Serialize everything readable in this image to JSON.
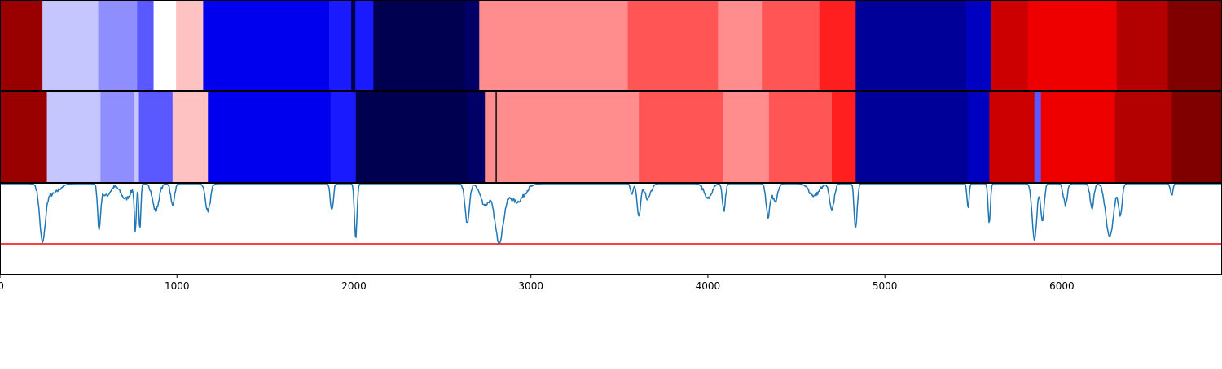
{
  "chart_data": [
    {
      "type": "heatmap",
      "panel": "segmentation_row_1",
      "xlim": [
        0,
        6905
      ],
      "colormap": "seismic",
      "segments": [
        {
          "start": 0,
          "end": 240,
          "color": "#990000"
        },
        {
          "start": 240,
          "end": 555,
          "color": "#c6c6ff"
        },
        {
          "start": 555,
          "end": 775,
          "color": "#8e8eff"
        },
        {
          "start": 775,
          "end": 868,
          "color": "#5959ff"
        },
        {
          "start": 868,
          "end": 995,
          "color": "#ffffff"
        },
        {
          "start": 995,
          "end": 1148,
          "color": "#ffc2c2"
        },
        {
          "start": 1148,
          "end": 1860,
          "color": "#0000ee"
        },
        {
          "start": 1860,
          "end": 1985,
          "color": "#1a1aff"
        },
        {
          "start": 1985,
          "end": 2008,
          "color": "#000044"
        },
        {
          "start": 2008,
          "end": 2110,
          "color": "#1a1aff"
        },
        {
          "start": 2110,
          "end": 2628,
          "color": "#000050"
        },
        {
          "start": 2628,
          "end": 2708,
          "color": "#000066"
        },
        {
          "start": 2708,
          "end": 3547,
          "color": "#ff8d8d"
        },
        {
          "start": 3547,
          "end": 4057,
          "color": "#ff5555"
        },
        {
          "start": 4057,
          "end": 4305,
          "color": "#ff8d8d"
        },
        {
          "start": 4305,
          "end": 4630,
          "color": "#ff5555"
        },
        {
          "start": 4630,
          "end": 4835,
          "color": "#ff1f1f"
        },
        {
          "start": 4835,
          "end": 5460,
          "color": "#000099"
        },
        {
          "start": 5460,
          "end": 5600,
          "color": "#0000c0"
        },
        {
          "start": 5600,
          "end": 5808,
          "color": "#cc0000"
        },
        {
          "start": 5808,
          "end": 6310,
          "color": "#ee0000"
        },
        {
          "start": 6310,
          "end": 6600,
          "color": "#b30000"
        },
        {
          "start": 6600,
          "end": 6905,
          "color": "#800000"
        }
      ]
    },
    {
      "type": "heatmap",
      "panel": "segmentation_row_2",
      "xlim": [
        0,
        6905
      ],
      "colormap": "seismic",
      "segments": [
        {
          "start": 0,
          "end": 265,
          "color": "#990000"
        },
        {
          "start": 265,
          "end": 568,
          "color": "#c6c6ff"
        },
        {
          "start": 568,
          "end": 760,
          "color": "#8e8eff"
        },
        {
          "start": 760,
          "end": 785,
          "color": "#c6c6ff"
        },
        {
          "start": 785,
          "end": 975,
          "color": "#5959ff"
        },
        {
          "start": 975,
          "end": 1175,
          "color": "#ffc2c2"
        },
        {
          "start": 1175,
          "end": 1868,
          "color": "#0000ee"
        },
        {
          "start": 1868,
          "end": 2010,
          "color": "#1a1aff"
        },
        {
          "start": 2010,
          "end": 2640,
          "color": "#000050"
        },
        {
          "start": 2640,
          "end": 2740,
          "color": "#000066"
        },
        {
          "start": 2740,
          "end": 2800,
          "color": "#ff8d8d"
        },
        {
          "start": 2800,
          "end": 2808,
          "color": "#222222"
        },
        {
          "start": 2808,
          "end": 3610,
          "color": "#ff8d8d"
        },
        {
          "start": 3610,
          "end": 4088,
          "color": "#ff5555"
        },
        {
          "start": 4088,
          "end": 4345,
          "color": "#ff8d8d"
        },
        {
          "start": 4345,
          "end": 4700,
          "color": "#ff5555"
        },
        {
          "start": 4700,
          "end": 4835,
          "color": "#ff1f1f"
        },
        {
          "start": 4835,
          "end": 5470,
          "color": "#000099"
        },
        {
          "start": 5470,
          "end": 5590,
          "color": "#0000c0"
        },
        {
          "start": 5590,
          "end": 5845,
          "color": "#cc0000"
        },
        {
          "start": 5845,
          "end": 5882,
          "color": "#5959ff"
        },
        {
          "start": 5882,
          "end": 6300,
          "color": "#ee0000"
        },
        {
          "start": 6300,
          "end": 6622,
          "color": "#b30000"
        },
        {
          "start": 6622,
          "end": 6905,
          "color": "#800000"
        }
      ]
    },
    {
      "type": "line",
      "panel": "signal",
      "xlim": [
        0,
        6905
      ],
      "ylim": [
        -1.5,
        0.0
      ],
      "x_ticks": [
        0,
        1000,
        2000,
        3000,
        4000,
        5000,
        6000
      ],
      "x_tick_labels": [
        "0",
        "1000",
        "2000",
        "3000",
        "4000",
        "5000",
        "6000"
      ],
      "threshold": {
        "value": -1.0,
        "color": "#ff0000"
      },
      "series": [
        {
          "color": "#1f77b4",
          "baseline": 0.0,
          "dips": [
            {
              "center": 240,
              "depth": 0.9,
              "width": 22
            },
            {
              "center": 290,
              "depth": 0.18,
              "width": 55
            },
            {
              "center": 560,
              "depth": 0.7,
              "width": 12
            },
            {
              "center": 600,
              "depth": 0.2,
              "width": 35
            },
            {
              "center": 710,
              "depth": 0.25,
              "width": 40
            },
            {
              "center": 765,
              "depth": 0.75,
              "width": 8
            },
            {
              "center": 790,
              "depth": 0.75,
              "width": 8
            },
            {
              "center": 880,
              "depth": 0.45,
              "width": 25
            },
            {
              "center": 975,
              "depth": 0.35,
              "width": 15
            },
            {
              "center": 1175,
              "depth": 0.45,
              "width": 20
            },
            {
              "center": 1875,
              "depth": 0.45,
              "width": 12
            },
            {
              "center": 2010,
              "depth": 0.92,
              "width": 10
            },
            {
              "center": 2640,
              "depth": 0.65,
              "width": 18
            },
            {
              "center": 2740,
              "depth": 0.35,
              "width": 35
            },
            {
              "center": 2820,
              "depth": 0.95,
              "width": 35
            },
            {
              "center": 2920,
              "depth": 0.3,
              "width": 60
            },
            {
              "center": 3570,
              "depth": 0.2,
              "width": 10
            },
            {
              "center": 3610,
              "depth": 0.55,
              "width": 14
            },
            {
              "center": 3660,
              "depth": 0.25,
              "width": 25
            },
            {
              "center": 4000,
              "depth": 0.25,
              "width": 30
            },
            {
              "center": 4090,
              "depth": 0.45,
              "width": 12
            },
            {
              "center": 4340,
              "depth": 0.55,
              "width": 15
            },
            {
              "center": 4380,
              "depth": 0.3,
              "width": 20
            },
            {
              "center": 4600,
              "depth": 0.2,
              "width": 40
            },
            {
              "center": 4700,
              "depth": 0.45,
              "width": 18
            },
            {
              "center": 4835,
              "depth": 0.75,
              "width": 12
            },
            {
              "center": 5470,
              "depth": 0.4,
              "width": 8
            },
            {
              "center": 5590,
              "depth": 0.65,
              "width": 9
            },
            {
              "center": 5845,
              "depth": 0.95,
              "width": 18
            },
            {
              "center": 5890,
              "depth": 0.6,
              "width": 14
            },
            {
              "center": 6020,
              "depth": 0.35,
              "width": 15
            },
            {
              "center": 6170,
              "depth": 0.4,
              "width": 15
            },
            {
              "center": 6270,
              "depth": 0.9,
              "width": 30
            },
            {
              "center": 6330,
              "depth": 0.5,
              "width": 15
            },
            {
              "center": 6620,
              "depth": 0.2,
              "width": 10
            }
          ]
        }
      ]
    }
  ],
  "style": {
    "axes_edge_color": "#000000",
    "line_color": "#1f77b4",
    "threshold_color": "#ff0000",
    "background": "#ffffff"
  }
}
